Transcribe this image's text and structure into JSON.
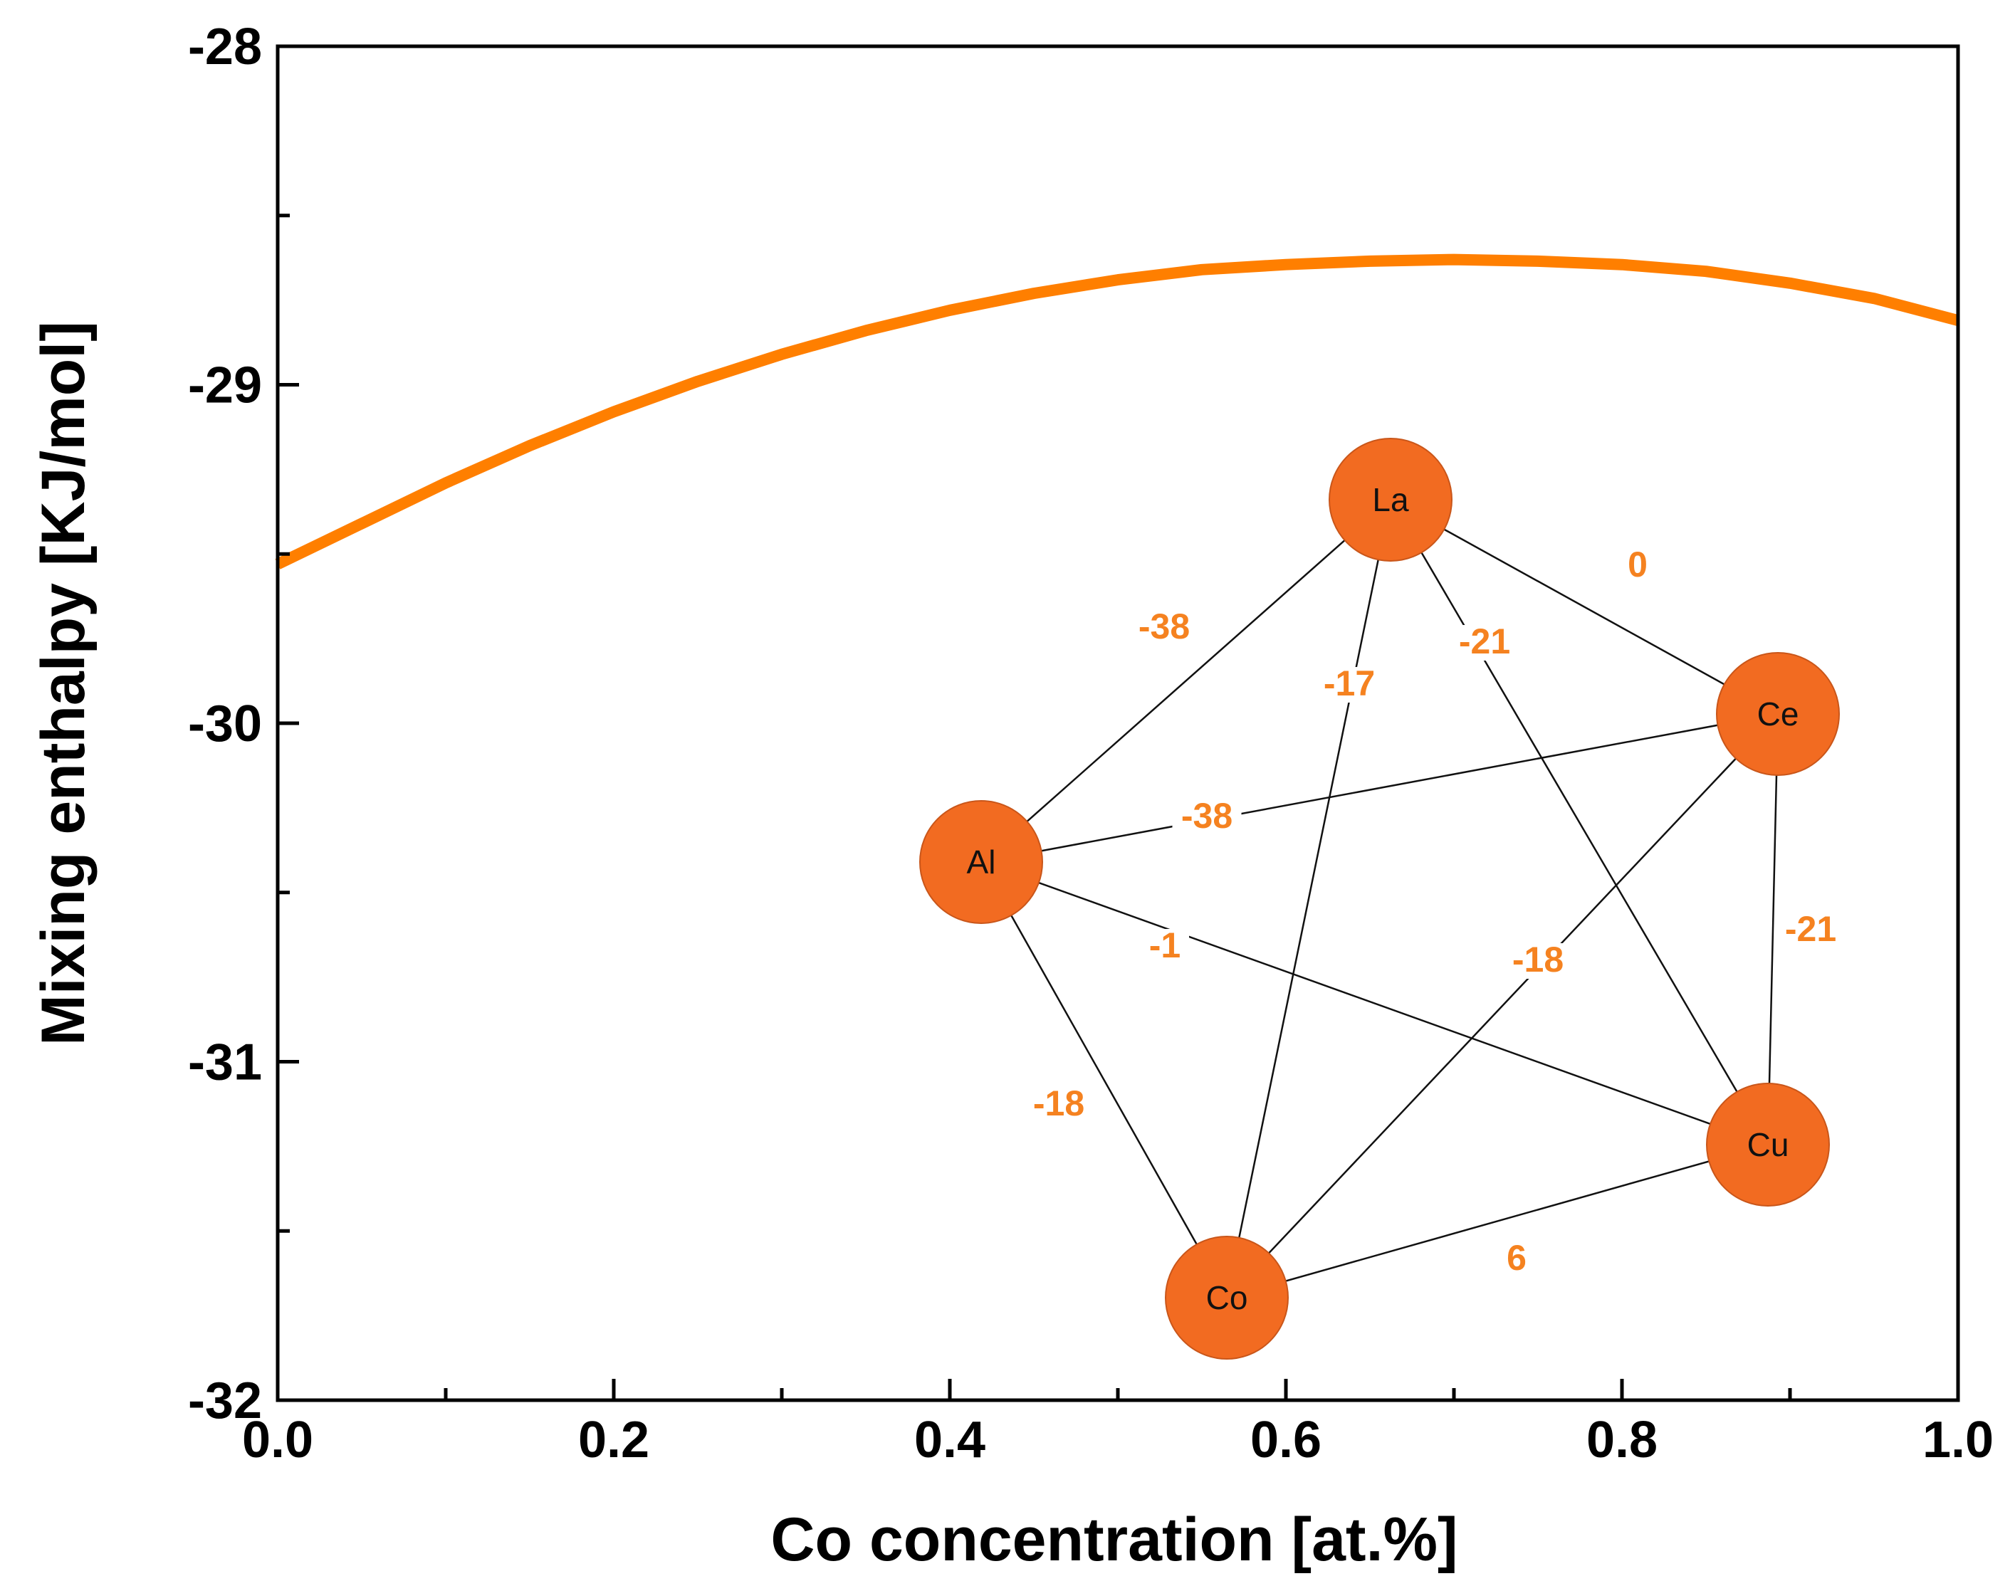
{
  "chart_data": {
    "type": "line",
    "xlabel": "Co concentration [at.%]",
    "ylabel": "Mixing enthalpy [KJ/mol]",
    "xlim": [
      0.0,
      1.0
    ],
    "ylim": [
      -32,
      -28
    ],
    "x_ticks": [
      "0.0",
      "0.2",
      "0.4",
      "0.6",
      "0.8",
      "1.0"
    ],
    "y_ticks": [
      "-28",
      "-29",
      "-30",
      "-31",
      "-32"
    ],
    "series": [
      {
        "name": "Mixing enthalpy",
        "color": "#FF7F00",
        "x": [
          0.0,
          0.05,
          0.1,
          0.15,
          0.2,
          0.25,
          0.3,
          0.35,
          0.4,
          0.45,
          0.5,
          0.55,
          0.6,
          0.65,
          0.7,
          0.75,
          0.8,
          0.85,
          0.9,
          0.95,
          1.0
        ],
        "y": [
          -29.53,
          -29.41,
          -29.29,
          -29.18,
          -29.08,
          -28.99,
          -28.91,
          -28.84,
          -28.78,
          -28.73,
          -28.69,
          -28.66,
          -28.645,
          -28.635,
          -28.63,
          -28.635,
          -28.645,
          -28.665,
          -28.7,
          -28.745,
          -28.81
        ]
      }
    ],
    "inset": {
      "type": "network",
      "node_color": "#F26B21",
      "edge_label_color": "#F58220",
      "nodes": [
        {
          "id": "La",
          "label": "La"
        },
        {
          "id": "Ce",
          "label": "Ce"
        },
        {
          "id": "Al",
          "label": "Al"
        },
        {
          "id": "Cu",
          "label": "Cu"
        },
        {
          "id": "Co",
          "label": "Co"
        }
      ],
      "edges": [
        {
          "from": "La",
          "to": "Al",
          "value": "-38"
        },
        {
          "from": "La",
          "to": "Ce",
          "value": "0"
        },
        {
          "from": "La",
          "to": "Co",
          "value": "-17"
        },
        {
          "from": "La",
          "to": "Cu",
          "value": "-21"
        },
        {
          "from": "Al",
          "to": "Ce",
          "value": "-38"
        },
        {
          "from": "Al",
          "to": "Cu",
          "value": "-1"
        },
        {
          "from": "Al",
          "to": "Co",
          "value": "-18"
        },
        {
          "from": "Ce",
          "to": "Co",
          "value": "-18"
        },
        {
          "from": "Ce",
          "to": "Cu",
          "value": "-21"
        },
        {
          "from": "Co",
          "to": "Cu",
          "value": "6"
        }
      ]
    }
  }
}
